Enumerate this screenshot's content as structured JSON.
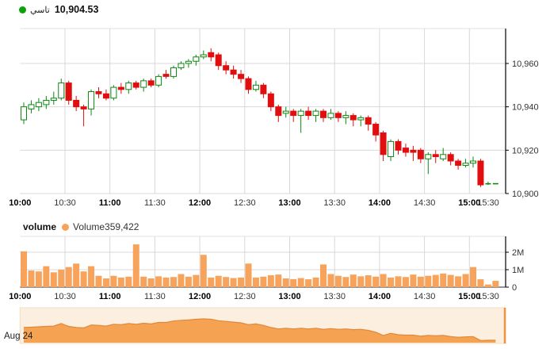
{
  "header": {
    "series_label": "تاسي",
    "last_price": "10,904.53"
  },
  "volume_header": {
    "title": "volume",
    "series_label": "Volume",
    "value": "359,422"
  },
  "navigator_label": "Aug 24",
  "colors": {
    "up": "#0c8a10",
    "down": "#e00e0e",
    "legend_price_dot": "#0aa30a",
    "legend_volume_dot": "#f7a35c",
    "volume_bar": "#f7a35c",
    "nav_bg": "#fcefe0",
    "nav_fill": "#f5a353",
    "nav_line": "#e0883a",
    "nav_handle": "#ee9440",
    "grid": "#d8d8d8",
    "pane_border": "#e2e2e2",
    "axis": "#000000",
    "vol_baseline": "#555555",
    "label": "#333333"
  },
  "chart_data": [
    {
      "type": "candlestick",
      "title": "تاسي",
      "last_value": 10904.53,
      "time_start": "10:00",
      "interval_minutes": 5,
      "x_labels": [
        {
          "label": "10:00",
          "bold": true
        },
        {
          "label": "10:30",
          "bold": false
        },
        {
          "label": "11:00",
          "bold": true
        },
        {
          "label": "11:30",
          "bold": false
        },
        {
          "label": "12:00",
          "bold": true
        },
        {
          "label": "12:30",
          "bold": false
        },
        {
          "label": "13:00",
          "bold": true
        },
        {
          "label": "13:30",
          "bold": false
        },
        {
          "label": "14:00",
          "bold": true
        },
        {
          "label": "14:30",
          "bold": false
        },
        {
          "label": "15:00",
          "bold": true
        },
        {
          "label": "15:30",
          "bold": false
        }
      ],
      "y_ticks": [
        {
          "v": 10900,
          "label": "10,900"
        },
        {
          "v": 10920,
          "label": "10,920"
        },
        {
          "v": 10940,
          "label": "10,940"
        },
        {
          "v": 10960,
          "label": "10,960"
        }
      ],
      "ylim": [
        10900,
        10976
      ],
      "candles_ohlc": [
        [
          10934,
          10942,
          10932,
          10940
        ],
        [
          10939,
          10943,
          10937,
          10941
        ],
        [
          10940,
          10944,
          10938,
          10942
        ],
        [
          10941,
          10945,
          10939,
          10943
        ],
        [
          10943,
          10947,
          10941,
          10944
        ],
        [
          10944,
          10953,
          10943,
          10951
        ],
        [
          10951,
          10952,
          10941,
          10943
        ],
        [
          10943,
          10945,
          10938,
          10940
        ],
        [
          10940,
          10941,
          10931,
          10939
        ],
        [
          10939,
          10948,
          10936,
          10947
        ],
        [
          10947,
          10949,
          10944,
          10946
        ],
        [
          10946,
          10948,
          10943,
          10944
        ],
        [
          10944,
          10950,
          10943,
          10949
        ],
        [
          10949,
          10951,
          10946,
          10948
        ],
        [
          10948,
          10952,
          10946,
          10951
        ],
        [
          10951,
          10952,
          10948,
          10949
        ],
        [
          10949,
          10953,
          10947,
          10952
        ],
        [
          10952,
          10953,
          10949,
          10950
        ],
        [
          10950,
          10955,
          10949,
          10954
        ],
        [
          10955,
          10957,
          10953,
          10954
        ],
        [
          10954,
          10959,
          10953,
          10958
        ],
        [
          10958,
          10961,
          10957,
          10960
        ],
        [
          10960,
          10962,
          10958,
          10961
        ],
        [
          10961,
          10964,
          10959,
          10963
        ],
        [
          10963,
          10966,
          10962,
          10964
        ],
        [
          10965,
          10967,
          10961,
          10963
        ],
        [
          10964,
          10965,
          10957,
          10959
        ],
        [
          10959,
          10961,
          10955,
          10957
        ],
        [
          10957,
          10959,
          10953,
          10955
        ],
        [
          10955,
          10957,
          10951,
          10953
        ],
        [
          10953,
          10954,
          10946,
          10948
        ],
        [
          10948,
          10952,
          10947,
          10950
        ],
        [
          10950,
          10951,
          10944,
          10946
        ],
        [
          10946,
          10947,
          10938,
          10940
        ],
        [
          10940,
          10941,
          10933,
          10936
        ],
        [
          10937,
          10940,
          10935,
          10938
        ],
        [
          10938,
          10939,
          10933,
          10936
        ],
        [
          10936,
          10939,
          10928,
          10938
        ],
        [
          10938,
          10940,
          10934,
          10936
        ],
        [
          10936,
          10939,
          10933,
          10938
        ],
        [
          10938,
          10939,
          10933,
          10935
        ],
        [
          10935,
          10939,
          10934,
          10937
        ],
        [
          10937,
          10938,
          10933,
          10935
        ],
        [
          10935,
          10938,
          10932,
          10936
        ],
        [
          10936,
          10937,
          10931,
          10934
        ],
        [
          10934,
          10936,
          10931,
          10935
        ],
        [
          10935,
          10936,
          10929,
          10932
        ],
        [
          10932,
          10933,
          10924,
          10927
        ],
        [
          10928,
          10929,
          10915,
          10918
        ],
        [
          10917,
          10925,
          10915,
          10924
        ],
        [
          10924,
          10925,
          10918,
          10920
        ],
        [
          10921,
          10923,
          10917,
          10919
        ],
        [
          10920,
          10922,
          10915,
          10919
        ],
        [
          10920,
          10921,
          10914,
          10916
        ],
        [
          10916,
          10919,
          10909,
          10918
        ],
        [
          10918,
          10920,
          10914,
          10917
        ],
        [
          10916,
          10921,
          10915,
          10918
        ],
        [
          10918,
          10919,
          10913,
          10915
        ],
        [
          10915,
          10916,
          10911,
          10913
        ],
        [
          10913,
          10916,
          10912,
          10914
        ],
        [
          10914,
          10917,
          10912,
          10915
        ],
        [
          10915,
          10916,
          10903,
          10904
        ],
        [
          10904.5,
          10905.5,
          10904,
          10904.5
        ],
        [
          10904.5,
          10904.6,
          10904.4,
          10904.53
        ]
      ]
    },
    {
      "type": "bar",
      "title": "volume",
      "series_name": "Volume",
      "last_value": 359422,
      "unit": "millions",
      "y_ticks": [
        {
          "m": 0,
          "label": "0"
        },
        {
          "m": 1,
          "label": "1M"
        },
        {
          "m": 2,
          "label": "2M"
        }
      ],
      "ylim": [
        0,
        2.9
      ],
      "values_millions": [
        2.05,
        0.95,
        0.9,
        1.2,
        0.85,
        1.0,
        1.15,
        1.35,
        0.9,
        1.2,
        0.65,
        0.5,
        0.65,
        0.55,
        0.6,
        2.45,
        0.6,
        0.5,
        0.62,
        0.55,
        0.58,
        0.75,
        0.6,
        0.7,
        1.85,
        0.55,
        0.65,
        0.58,
        0.52,
        0.55,
        1.35,
        0.55,
        0.6,
        0.68,
        0.72,
        0.5,
        0.46,
        0.52,
        0.45,
        0.55,
        1.3,
        0.75,
        0.65,
        0.58,
        0.72,
        0.62,
        0.68,
        0.6,
        0.75,
        0.55,
        0.62,
        0.58,
        0.72,
        0.6,
        0.65,
        0.7,
        0.78,
        0.7,
        0.62,
        0.75,
        1.15,
        0.45,
        0.15,
        0.36
      ]
    },
    {
      "type": "area",
      "title": "navigator",
      "label": "Aug 24",
      "note": "price-close silhouette of the full session",
      "ylim": [
        10898,
        10975
      ]
    }
  ]
}
